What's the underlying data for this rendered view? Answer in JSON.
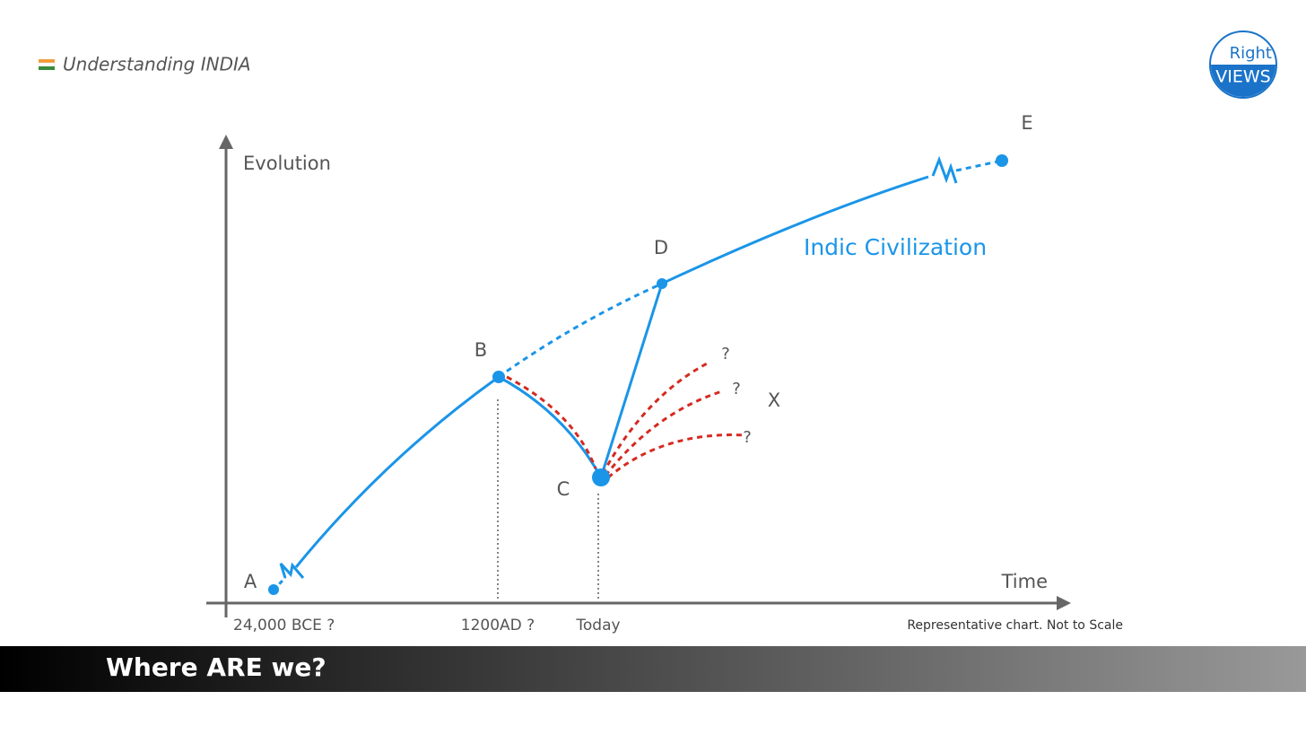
{
  "header": {
    "title": "Understanding INDIA"
  },
  "logo": {
    "top": "Right",
    "bottom": "VIEWS"
  },
  "axes": {
    "y_label": "Evolution",
    "x_label": "Time"
  },
  "points": [
    "A",
    "B",
    "C",
    "D",
    "E"
  ],
  "future_label": "X",
  "unknowns": [
    "?",
    "?",
    "?"
  ],
  "civilization_label": "Indic Civilization",
  "time_labels": [
    "24,000 BCE ?",
    "1200AD ?",
    "Today"
  ],
  "note": "Representative chart. Not to Scale",
  "banner": "Where ARE we?"
}
